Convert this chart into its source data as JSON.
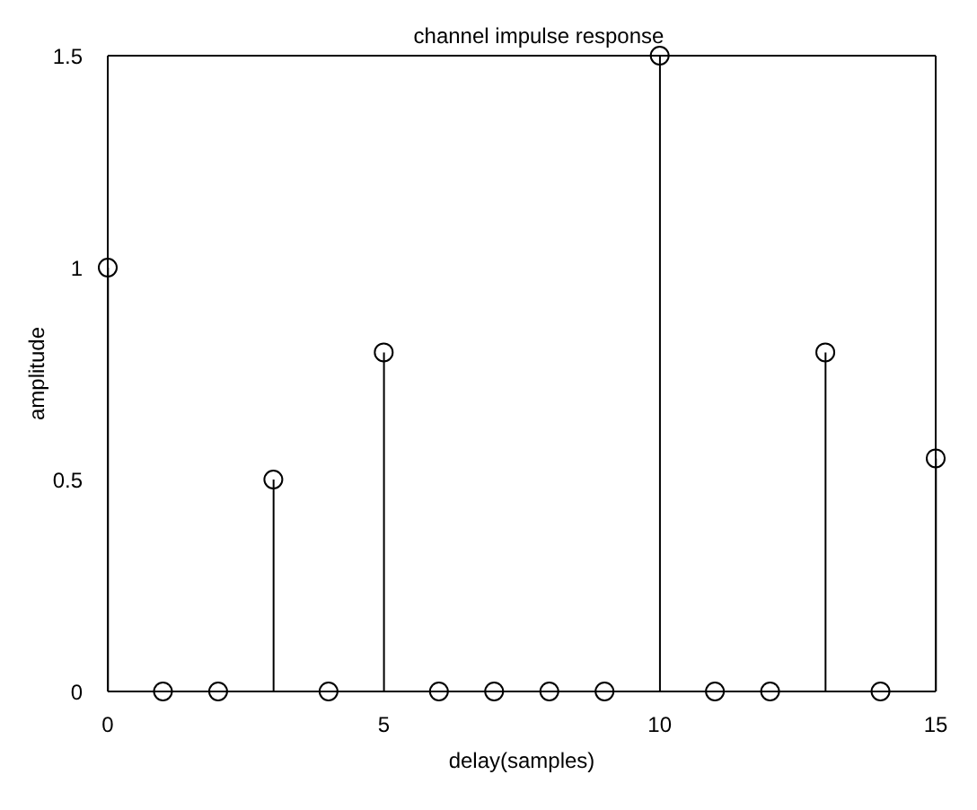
{
  "chart_data": {
    "type": "lollipop",
    "title": "channel impulse response",
    "xlabel": "delay(samples)",
    "ylabel": "amplitude",
    "x": [
      0,
      1,
      2,
      3,
      4,
      5,
      6,
      7,
      8,
      9,
      10,
      11,
      12,
      13,
      14,
      15
    ],
    "values": [
      1,
      0,
      0,
      0.5,
      0,
      0.8,
      0,
      0,
      0,
      0,
      1.5,
      0,
      0,
      0.8,
      0,
      0.55
    ],
    "color": "#000000",
    "marker": "circle",
    "xlim": [
      0,
      15
    ],
    "xticks": [
      0,
      5,
      10,
      15
    ],
    "ylim": [
      0,
      1.5
    ],
    "yticks": [
      0,
      0.5,
      1,
      1.5
    ]
  }
}
